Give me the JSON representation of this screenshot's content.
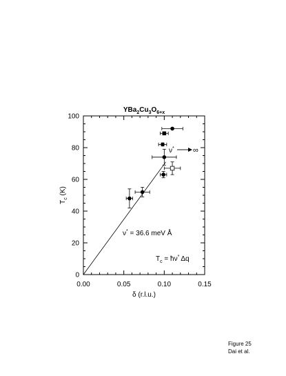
{
  "chart_data": {
    "type": "scatter",
    "title_parts": [
      {
        "t": "YBa",
        "sub": false
      },
      {
        "t": "2",
        "sub": true
      },
      {
        "t": "Cu",
        "sub": false
      },
      {
        "t": "3",
        "sub": true
      },
      {
        "t": "O",
        "sub": false
      },
      {
        "t": "6+x",
        "sub": true
      }
    ],
    "xlabel": "δ (r.l.u.)",
    "ylabel_main": "T",
    "ylabel_sub": "c",
    "ylabel_unit": "(K)",
    "xlim": [
      0.0,
      0.15
    ],
    "ylim": [
      0,
      100
    ],
    "xticks": [
      "0.00",
      "0.05",
      "0.10",
      "0.15"
    ],
    "xtick_values": [
      0.0,
      0.05,
      0.1,
      0.15
    ],
    "yticks": [
      "0",
      "20",
      "40",
      "60",
      "80",
      "100"
    ],
    "ytick_values": [
      0,
      20,
      40,
      60,
      80,
      100
    ],
    "grid": false,
    "series": [
      {
        "marker": "filled-circle",
        "points": [
          {
            "x": 0.057,
            "y": 48,
            "xerr": 0.004,
            "yerr": 6
          },
          {
            "x": 0.073,
            "y": 52,
            "xerr": 0.009,
            "yerr": 3
          },
          {
            "x": 0.099,
            "y": 63,
            "xerr": 0.004,
            "yerr": 2
          },
          {
            "x": 0.1,
            "y": 74,
            "xerr": 0.015,
            "yerr": 5
          },
          {
            "x": 0.098,
            "y": 82,
            "xerr": 0.005,
            "yerr": 1
          },
          {
            "x": 0.11,
            "y": 92,
            "xerr": 0.013,
            "yerr": 0
          }
        ]
      },
      {
        "marker": "filled-square",
        "points": [
          {
            "x": 0.1,
            "y": 89,
            "xerr": 0.005,
            "yerr": 1
          }
        ]
      },
      {
        "marker": "open-square",
        "points": [
          {
            "x": 0.11,
            "y": 67,
            "xerr": 0.01,
            "yerr": 4
          }
        ]
      }
    ],
    "fit_line": {
      "x": [
        0.0,
        0.102
      ],
      "y": [
        0,
        71
      ]
    },
    "annotations": {
      "velocity_value": "ν* = 36.6 meV Å",
      "velocity_nu": "ν",
      "velocity_star": "*",
      "velocity_eq": " = 36.6 meV Å",
      "formula_T": "T",
      "formula_c": "c",
      "formula_rhs": " = ħν* Δq",
      "formula_rhs_a": " = ħν",
      "formula_rhs_star": "*",
      "formula_rhs_b": "Δq",
      "arrow_nu": "ν",
      "arrow_star": "*",
      "arrow_target": "∞"
    }
  },
  "caption": {
    "line1": "Figure 25",
    "line2": "Dai et al."
  }
}
